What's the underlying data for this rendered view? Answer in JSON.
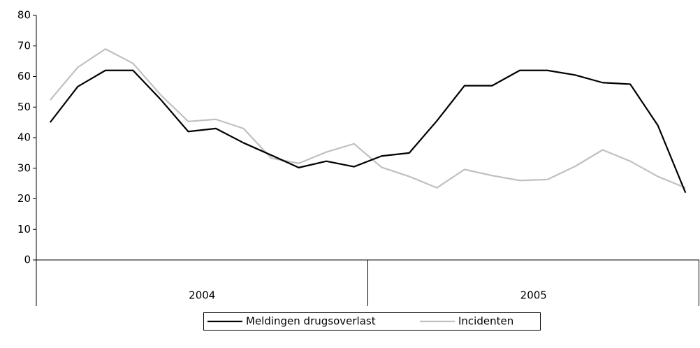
{
  "chart_data": {
    "type": "line",
    "categories": [
      null,
      null,
      null,
      null,
      null,
      null,
      null,
      null,
      null,
      null,
      null,
      null,
      null,
      null,
      null,
      null,
      null,
      null,
      null,
      null,
      null,
      null,
      null,
      null
    ],
    "x_groups": [
      "2004",
      "2005"
    ],
    "series": [
      {
        "name": "Meldingen drugsoverlast",
        "color": "#000000",
        "values": [
          45,
          56.7,
          62,
          62,
          52.5,
          42,
          43,
          38.3,
          34.3,
          30.2,
          32.3,
          30.5,
          34,
          35,
          45.5,
          57,
          57,
          62,
          62,
          60.5,
          58,
          57.5,
          44,
          22
        ]
      },
      {
        "name": "Incidenten",
        "color": "#c0c0c0",
        "values": [
          52.3,
          63,
          69,
          64.3,
          54,
          45.3,
          46,
          43,
          33.3,
          31.6,
          35.3,
          38,
          30.3,
          27.3,
          23.6,
          29.6,
          27.6,
          26,
          26.3,
          30.6,
          36,
          32.3,
          27.3,
          23.6
        ]
      }
    ],
    "ylim": [
      0,
      80
    ],
    "yticks": [
      0,
      10,
      20,
      30,
      40,
      50,
      60,
      70,
      80
    ],
    "grid": false,
    "legend": "bottom"
  }
}
